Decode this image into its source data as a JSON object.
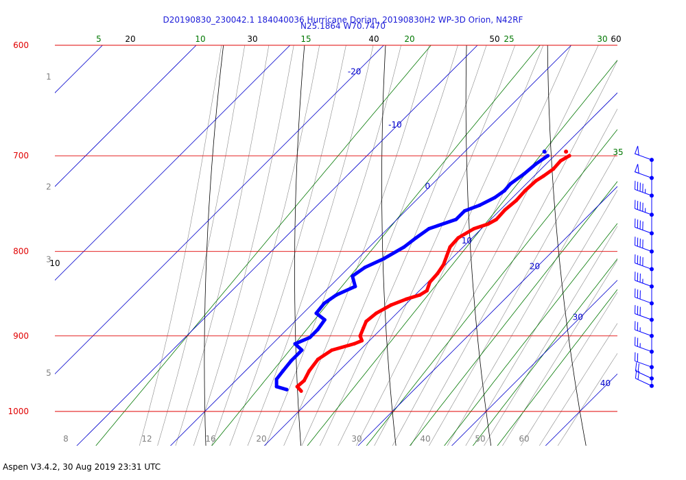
{
  "colors": {
    "isobar": "#e00000",
    "temperature": "#ff0000",
    "dewpoint": "#0000ff",
    "isotherm": "#0000cc",
    "mixing_ratio": "#007700",
    "dry_adiabat": "#000000",
    "moist_adiabat": "#888888",
    "height_label": "#808080",
    "wind": "#0000ff",
    "title": "#1a1ad8"
  },
  "chart_data": {
    "type": "line",
    "title": "D20190830_230042.1 184040036 Hurricane Dorian, 20190830H2 WP-3D Orion, N42RF",
    "subtitle": "N25.1864 W70.7470",
    "pressure_levels": [
      {
        "p": 600,
        "label": "600"
      },
      {
        "p": 700,
        "label": "700"
      },
      {
        "p": 800,
        "label": "800"
      },
      {
        "p": 900,
        "label": "900"
      },
      {
        "p": 1000,
        "label": "1000"
      }
    ],
    "ylim": [
      600,
      1050
    ],
    "xlim_temp_c": [
      -16,
      44
    ],
    "height_labels": [
      {
        "p": 627,
        "label": "1"
      },
      {
        "p": 731,
        "label": "2"
      },
      {
        "p": 809,
        "label": "3"
      },
      {
        "p": 948,
        "label": "5"
      }
    ],
    "isotherms": [
      {
        "t": -20,
        "label": "-20"
      },
      {
        "t": -10,
        "label": "-10"
      },
      {
        "t": 0,
        "label": "0"
      },
      {
        "t": 10,
        "label": "10"
      },
      {
        "t": 20,
        "label": "20"
      },
      {
        "t": 30,
        "label": "30"
      },
      {
        "t": 40,
        "label": "40"
      }
    ],
    "mixing_ratio_top_labels": [
      "5",
      "10",
      "15",
      "20",
      "25",
      "30"
    ],
    "mixing_ratio_right_label": "35",
    "dry_adiabat_top_labels": [
      "20",
      "30",
      "40",
      "50",
      "60"
    ],
    "dry_adiabat_left_label": "10",
    "moist_adiabat_bottom_labels": [
      "8",
      "12",
      "16",
      "20",
      "30",
      "40",
      "50",
      "60"
    ],
    "series": [
      {
        "name": "Temperature",
        "points": [
          {
            "p": 700,
            "t": 11.6
          },
          {
            "p": 705,
            "t": 11.2
          },
          {
            "p": 713,
            "t": 11.3
          },
          {
            "p": 720,
            "t": 11.0
          },
          {
            "p": 725,
            "t": 10.7
          },
          {
            "p": 735,
            "t": 10.6
          },
          {
            "p": 745,
            "t": 10.7
          },
          {
            "p": 755,
            "t": 10.5
          },
          {
            "p": 765,
            "t": 10.6
          },
          {
            "p": 770,
            "t": 10.2
          },
          {
            "p": 775,
            "t": 9.2
          },
          {
            "p": 785,
            "t": 8.5
          },
          {
            "p": 795,
            "t": 8.6
          },
          {
            "p": 805,
            "t": 9.2
          },
          {
            "p": 815,
            "t": 9.8
          },
          {
            "p": 825,
            "t": 10.1
          },
          {
            "p": 835,
            "t": 10.2
          },
          {
            "p": 845,
            "t": 10.8
          },
          {
            "p": 850,
            "t": 10.5
          },
          {
            "p": 855,
            "t": 9.5
          },
          {
            "p": 862,
            "t": 8.5
          },
          {
            "p": 872,
            "t": 7.8
          },
          {
            "p": 882,
            "t": 7.6
          },
          {
            "p": 890,
            "t": 8.0
          },
          {
            "p": 900,
            "t": 8.5
          },
          {
            "p": 906,
            "t": 9.2
          },
          {
            "p": 910,
            "t": 8.7
          },
          {
            "p": 918,
            "t": 7.0
          },
          {
            "p": 930,
            "t": 6.5
          },
          {
            "p": 945,
            "t": 6.8
          },
          {
            "p": 958,
            "t": 7.3
          },
          {
            "p": 966,
            "t": 7.2
          },
          {
            "p": 972,
            "t": 8.1
          }
        ]
      },
      {
        "name": "Dewpoint",
        "points": [
          {
            "p": 700,
            "t": 9.3
          },
          {
            "p": 708,
            "t": 8.9
          },
          {
            "p": 718,
            "t": 8.7
          },
          {
            "p": 728,
            "t": 8.3
          },
          {
            "p": 735,
            "t": 8.4
          },
          {
            "p": 742,
            "t": 8.1
          },
          {
            "p": 750,
            "t": 7.3
          },
          {
            "p": 756,
            "t": 6.3
          },
          {
            "p": 765,
            "t": 6.3
          },
          {
            "p": 775,
            "t": 4.4
          },
          {
            "p": 785,
            "t": 4.0
          },
          {
            "p": 795,
            "t": 3.7
          },
          {
            "p": 808,
            "t": 2.8
          },
          {
            "p": 818,
            "t": 1.7
          },
          {
            "p": 828,
            "t": 1.3
          },
          {
            "p": 840,
            "t": 2.7
          },
          {
            "p": 850,
            "t": 1.6
          },
          {
            "p": 860,
            "t": 1.2
          },
          {
            "p": 872,
            "t": 1.4
          },
          {
            "p": 880,
            "t": 3.0
          },
          {
            "p": 892,
            "t": 3.3
          },
          {
            "p": 902,
            "t": 3.3
          },
          {
            "p": 910,
            "t": 2.4
          },
          {
            "p": 918,
            "t": 3.8
          },
          {
            "p": 932,
            "t": 3.8
          },
          {
            "p": 945,
            "t": 4.0
          },
          {
            "p": 956,
            "t": 4.2
          },
          {
            "p": 966,
            "t": 5.0
          },
          {
            "p": 970,
            "t": 6.4
          }
        ]
      }
    ],
    "wind_profile": [
      {
        "p": 704,
        "dir": 110,
        "speed_kt": 50
      },
      {
        "p": 722,
        "dir": 110,
        "speed_kt": 50
      },
      {
        "p": 740,
        "dir": 110,
        "speed_kt": 45
      },
      {
        "p": 760,
        "dir": 110,
        "speed_kt": 45
      },
      {
        "p": 780,
        "dir": 110,
        "speed_kt": 40
      },
      {
        "p": 800,
        "dir": 110,
        "speed_kt": 40
      },
      {
        "p": 820,
        "dir": 110,
        "speed_kt": 40
      },
      {
        "p": 840,
        "dir": 110,
        "speed_kt": 35
      },
      {
        "p": 860,
        "dir": 110,
        "speed_kt": 30
      },
      {
        "p": 880,
        "dir": 110,
        "speed_kt": 30
      },
      {
        "p": 900,
        "dir": 110,
        "speed_kt": 25
      },
      {
        "p": 920,
        "dir": 110,
        "speed_kt": 25
      },
      {
        "p": 940,
        "dir": 110,
        "speed_kt": 20
      },
      {
        "p": 955,
        "dir": 115,
        "speed_kt": 20
      },
      {
        "p": 965,
        "dir": 115,
        "speed_kt": 20
      }
    ],
    "grid": true
  },
  "footer": "Aspen V3.4.2, 30 Aug 2019  23:31 UTC"
}
